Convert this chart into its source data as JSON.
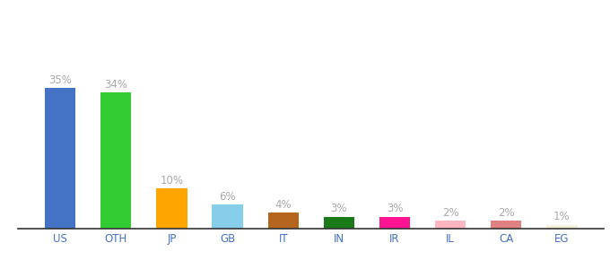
{
  "categories": [
    "US",
    "OTH",
    "JP",
    "GB",
    "IT",
    "IN",
    "IR",
    "IL",
    "CA",
    "EG"
  ],
  "values": [
    35,
    34,
    10,
    6,
    4,
    3,
    3,
    2,
    2,
    1
  ],
  "bar_colors": [
    "#4472C4",
    "#33CC33",
    "#FFA500",
    "#87CEEB",
    "#B5651D",
    "#1A7A1A",
    "#FF1493",
    "#FFB6C1",
    "#E08080",
    "#F5F0DC"
  ],
  "labels": [
    "35%",
    "34%",
    "10%",
    "6%",
    "4%",
    "3%",
    "3%",
    "2%",
    "2%",
    "1%"
  ],
  "label_color": "#aaaaaa",
  "xlabel_color": "#4472C4",
  "background_color": "#ffffff",
  "ylim": [
    0,
    55
  ],
  "bar_width": 0.55,
  "label_fontsize": 8.5,
  "xlabel_fontsize": 8.5
}
